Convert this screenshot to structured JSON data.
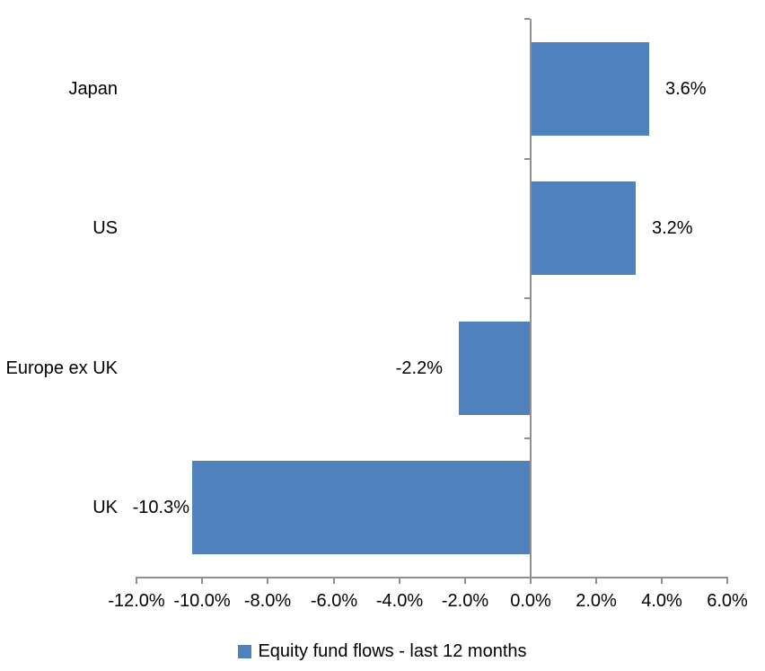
{
  "chart_data": {
    "type": "bar",
    "orientation": "horizontal",
    "title": "",
    "categories": [
      "Japan",
      "US",
      "Europe ex UK",
      "UK"
    ],
    "values": [
      3.6,
      3.2,
      -2.2,
      -10.3
    ],
    "data_labels": [
      "3.6%",
      "3.2%",
      "-2.2%",
      "-10.3%"
    ],
    "x_tick_labels": [
      "-12.0%",
      "-10.0%",
      "-8.0%",
      "-6.0%",
      "-4.0%",
      "-2.0%",
      "0.0%",
      "2.0%",
      "4.0%",
      "6.0%"
    ],
    "x_tick_values": [
      -12,
      -10,
      -8,
      -6,
      -4,
      -2,
      0,
      2,
      4,
      6
    ],
    "xlim": [
      -12,
      6
    ],
    "grid": false,
    "legend": {
      "position": "bottom",
      "label": "Equity fund flows - last 12 months"
    },
    "colors": {
      "bar": "#4F81BD",
      "axis": "#909090",
      "text": "#000000",
      "background": "#FFFFFF"
    }
  }
}
